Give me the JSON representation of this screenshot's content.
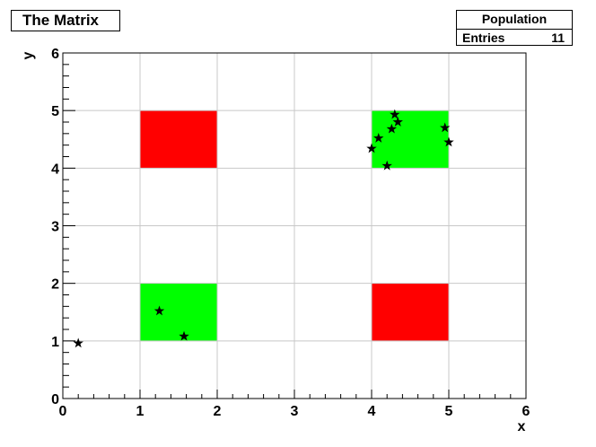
{
  "chart_data": {
    "type": "scatter",
    "title": "The Matrix",
    "xlabel": "x",
    "ylabel": "y",
    "xlim": [
      0,
      6
    ],
    "ylim": [
      0,
      6
    ],
    "x_ticks": [
      0,
      1,
      2,
      3,
      4,
      5,
      6
    ],
    "y_ticks": [
      0,
      1,
      2,
      3,
      4,
      5,
      6
    ],
    "grid": true,
    "regions": [
      {
        "x": [
          1,
          2
        ],
        "y": [
          4,
          5
        ],
        "color": "#ff0000"
      },
      {
        "x": [
          4,
          5
        ],
        "y": [
          4,
          5
        ],
        "color": "#00ff00"
      },
      {
        "x": [
          1,
          2
        ],
        "y": [
          1,
          2
        ],
        "color": "#00ff00"
      },
      {
        "x": [
          4,
          5
        ],
        "y": [
          1,
          2
        ],
        "color": "#ff0000"
      }
    ],
    "points": {
      "marker": "star",
      "color": "#000000",
      "x": [
        0.2,
        1.25,
        1.57,
        4.0,
        4.09,
        4.2,
        4.26,
        4.3,
        4.34,
        4.95,
        5.0
      ],
      "y": [
        0.96,
        1.52,
        1.08,
        4.34,
        4.52,
        4.04,
        4.68,
        4.93,
        4.8,
        4.7,
        4.45
      ]
    }
  },
  "stats": {
    "title": "Population",
    "entries_label": "Entries",
    "entries_value": "11"
  }
}
